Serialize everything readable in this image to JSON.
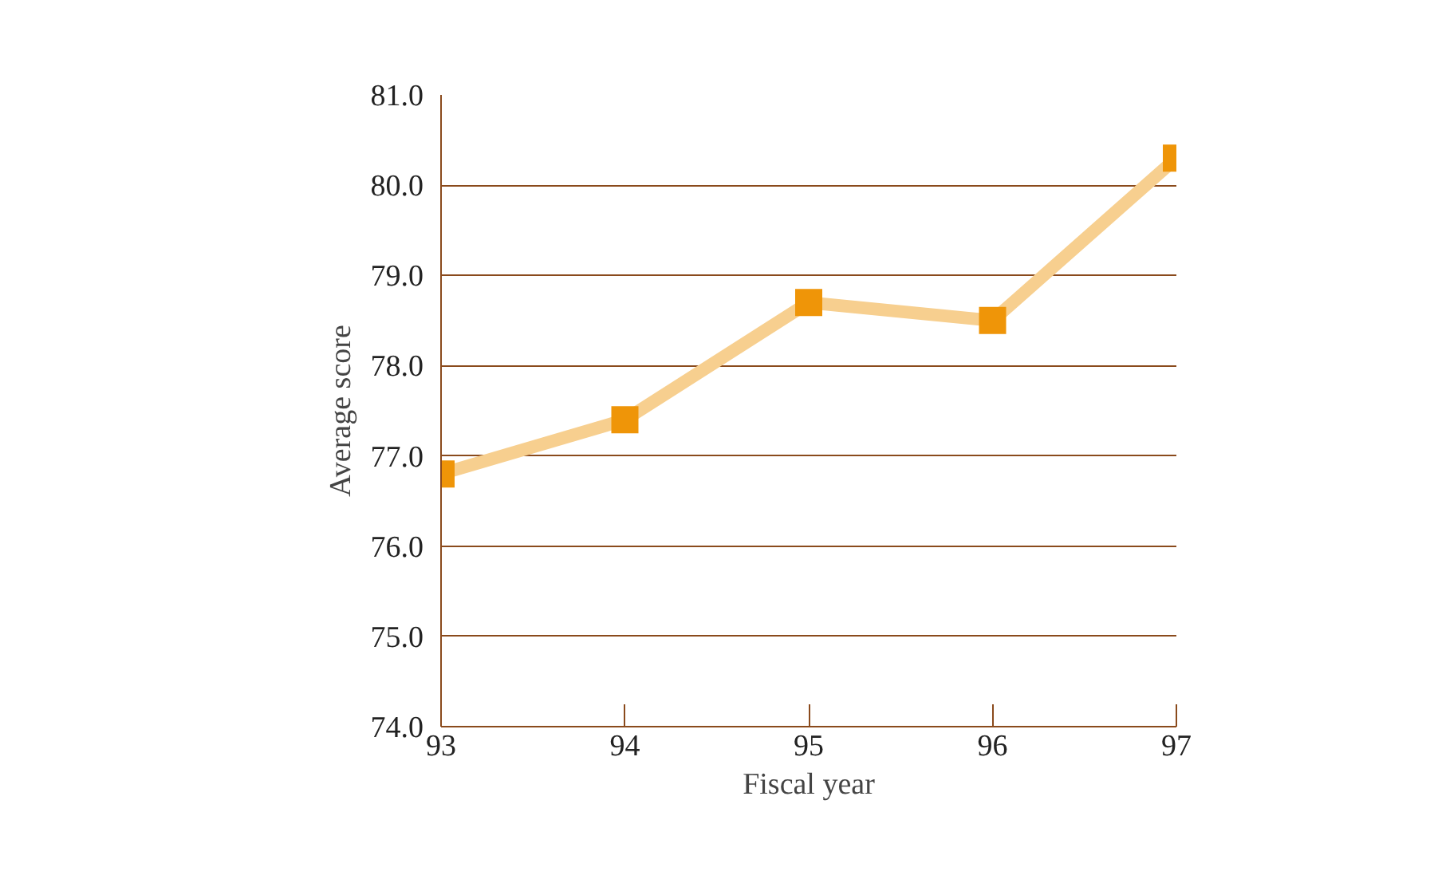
{
  "chart_data": {
    "type": "line",
    "xlabel": "Fiscal year",
    "ylabel": "Average score",
    "x": [
      93,
      94,
      95,
      96,
      97
    ],
    "series": [
      {
        "color": "#ef9508",
        "values": [
          76.8,
          77.4,
          78.7,
          78.5,
          80.3
        ]
      }
    ],
    "xlim": [
      93,
      97
    ],
    "xticks": [
      93,
      94,
      95,
      96,
      97
    ],
    "ylim": [
      74.0,
      81.0
    ],
    "yticks": [
      {
        "value": 74,
        "label": "74.0"
      },
      {
        "value": 75,
        "label": "75.0"
      },
      {
        "value": 76,
        "label": "76.0"
      },
      {
        "value": 77,
        "label": "77.0"
      },
      {
        "value": 78,
        "label": "78.0"
      },
      {
        "value": 79,
        "label": "79.0"
      },
      {
        "value": 80,
        "label": "80.0"
      },
      {
        "value": 81,
        "label": "81.0"
      }
    ],
    "grid": "y",
    "marker": "square",
    "line_style": "solid"
  }
}
